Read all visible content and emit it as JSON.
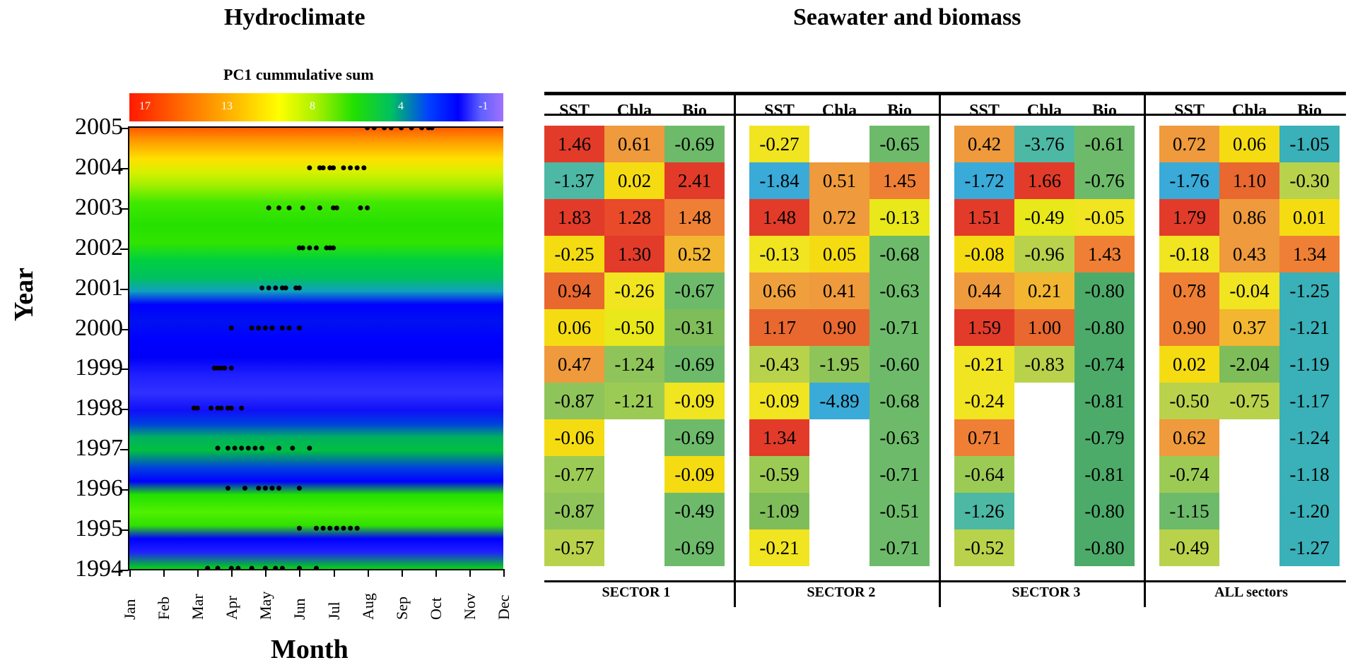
{
  "titles": {
    "left": "Hydroclimate",
    "right": "Seawater and biomass"
  },
  "colorbar": {
    "title": "PC1 cummulative sum",
    "ticks": [
      "17",
      "13",
      "8",
      "4",
      "-1"
    ]
  },
  "chart_data": [
    {
      "type": "heatmap",
      "title": "Hydroclimate",
      "xlabel": "Month",
      "ylabel": "Year",
      "x": [
        "Jan",
        "Feb",
        "Mar",
        "Apr",
        "May",
        "Jun",
        "Jul",
        "Aug",
        "Sep",
        "Oct",
        "Nov",
        "Dec"
      ],
      "y": [
        "2005",
        "2004",
        "2003",
        "2002",
        "2001",
        "2000",
        "1999",
        "1998",
        "1997",
        "1996",
        "1995",
        "1994"
      ],
      "colorbar_label": "PC1 cummulative sum",
      "colorbar_range": [
        -1,
        17
      ],
      "dots": [
        {
          "year": 2005,
          "months": [
            7.0,
            7.2,
            7.5,
            7.7,
            8.0,
            8.3,
            8.6,
            8.8,
            8.9
          ]
        },
        {
          "year": 2004,
          "months": [
            5.3,
            5.6,
            5.7,
            5.9,
            6.0,
            6.3,
            6.5,
            6.7,
            6.9
          ]
        },
        {
          "year": 2003,
          "months": [
            4.1,
            4.4,
            4.7,
            5.1,
            5.6,
            6.0,
            6.1,
            6.8,
            7.0
          ]
        },
        {
          "year": 2002,
          "months": [
            5.0,
            5.1,
            5.3,
            5.5,
            5.8,
            5.9,
            6.0
          ]
        },
        {
          "year": 2001,
          "months": [
            3.9,
            4.1,
            4.3,
            4.5,
            4.6,
            4.9,
            5.0
          ]
        },
        {
          "year": 2000,
          "months": [
            3.0,
            3.6,
            3.8,
            4.0,
            4.2,
            4.5,
            4.7,
            5.0
          ]
        },
        {
          "year": 1999,
          "months": [
            2.5,
            2.6,
            2.7,
            2.8,
            3.0
          ]
        },
        {
          "year": 1998,
          "months": [
            1.9,
            2.0,
            2.4,
            2.6,
            2.7,
            2.9,
            3.0,
            3.3
          ]
        },
        {
          "year": 1997,
          "months": [
            2.6,
            2.9,
            3.1,
            3.3,
            3.5,
            3.7,
            3.9,
            4.4,
            4.8,
            5.3
          ]
        },
        {
          "year": 1996,
          "months": [
            2.9,
            3.4,
            3.8,
            4.0,
            4.2,
            4.4,
            5.0
          ]
        },
        {
          "year": 1995,
          "months": [
            5.0,
            5.5,
            5.7,
            5.9,
            6.1,
            6.3,
            6.5,
            6.7
          ]
        },
        {
          "year": 1994,
          "months": [
            2.3,
            2.6,
            3.0,
            3.2,
            3.6,
            4.0,
            4.3,
            4.5,
            5.0,
            5.5
          ]
        }
      ]
    },
    {
      "type": "table",
      "title": "Seawater and biomass",
      "years": [
        "2005",
        "2004",
        "2003",
        "2002",
        "2001",
        "2000",
        "1999",
        "1998",
        "1997",
        "1996",
        "1995",
        "1994"
      ],
      "columns": [
        "SST",
        "Chla",
        "Bio"
      ],
      "sectors": [
        {
          "name": "SECTOR 1",
          "values": [
            [
              "1.46",
              "0.61",
              "-0.69"
            ],
            [
              "-1.37",
              "0.02",
              "2.41"
            ],
            [
              "1.83",
              "1.28",
              "1.48"
            ],
            [
              "-0.25",
              "1.30",
              "0.52"
            ],
            [
              "0.94",
              "-0.26",
              "-0.67"
            ],
            [
              "0.06",
              "-0.50",
              "-0.31"
            ],
            [
              "0.47",
              "-1.24",
              "-0.69"
            ],
            [
              "-0.87",
              "-1.21",
              "-0.09"
            ],
            [
              "-0.06",
              "",
              "-0.69"
            ],
            [
              "-0.77",
              "",
              "-0.09"
            ],
            [
              "-0.87",
              "",
              "-0.49"
            ],
            [
              "-0.57",
              "",
              "-0.69"
            ]
          ],
          "colors": [
            [
              "#e23b2a",
              "#ef9a3c",
              "#6dbb6a"
            ],
            [
              "#4db8a4",
              "#f5dc12",
              "#e23b2a"
            ],
            [
              "#e23b2a",
              "#e84a2a",
              "#ef7f35"
            ],
            [
              "#f5dc12",
              "#e23b2a",
              "#f2b630"
            ],
            [
              "#e8682f",
              "#f1e420",
              "#6dbb6a"
            ],
            [
              "#f5dc12",
              "#e8e81a",
              "#7fbd5a"
            ],
            [
              "#ef9a3c",
              "#8fc45a",
              "#6dbb6a"
            ],
            [
              "#8fc45a",
              "#9ccb55",
              "#f1e420"
            ],
            [
              "#f5dc12",
              "#ffffff",
              "#6dbb6a"
            ],
            [
              "#9ccb55",
              "#ffffff",
              "#f5dc12"
            ],
            [
              "#8fc45a",
              "#ffffff",
              "#6dbb6a"
            ],
            [
              "#b8d24c",
              "#ffffff",
              "#6dbb6a"
            ]
          ]
        },
        {
          "name": "SECTOR 2",
          "values": [
            [
              "-0.27",
              "",
              "-0.65"
            ],
            [
              "-1.84",
              "0.51",
              "1.45"
            ],
            [
              "1.48",
              "0.72",
              "-0.13"
            ],
            [
              "-0.13",
              "0.05",
              "-0.68"
            ],
            [
              "0.66",
              "0.41",
              "-0.63"
            ],
            [
              "1.17",
              "0.90",
              "-0.71"
            ],
            [
              "-0.43",
              "-1.95",
              "-0.60"
            ],
            [
              "-0.09",
              "-4.89",
              "-0.68"
            ],
            [
              "1.34",
              "",
              "-0.63"
            ],
            [
              "-0.59",
              "",
              "-0.71"
            ],
            [
              "-1.09",
              "",
              "-0.51"
            ],
            [
              "-0.21",
              "",
              "-0.71"
            ]
          ],
          "colors": [
            [
              "#f1e420",
              "#ffffff",
              "#6dbb6a"
            ],
            [
              "#3aaad8",
              "#ef9a3c",
              "#ef7f35"
            ],
            [
              "#e23b2a",
              "#ef9a3c",
              "#e8e81a"
            ],
            [
              "#f1e420",
              "#f5dc12",
              "#6dbb6a"
            ],
            [
              "#efa03c",
              "#ef9a3c",
              "#6dbb6a"
            ],
            [
              "#e8682f",
              "#e8682f",
              "#6dbb6a"
            ],
            [
              "#b8d24c",
              "#8fc45a",
              "#6dbb6a"
            ],
            [
              "#f1e420",
              "#3aaad8",
              "#6dbb6a"
            ],
            [
              "#e23b2a",
              "#ffffff",
              "#6dbb6a"
            ],
            [
              "#9ccb55",
              "#ffffff",
              "#6dbb6a"
            ],
            [
              "#7fbd5a",
              "#ffffff",
              "#6dbb6a"
            ],
            [
              "#f1e420",
              "#ffffff",
              "#6dbb6a"
            ]
          ]
        },
        {
          "name": "SECTOR 3",
          "values": [
            [
              "0.42",
              "-3.76",
              "-0.61"
            ],
            [
              "-1.72",
              "1.66",
              "-0.76"
            ],
            [
              "1.51",
              "-0.49",
              "-0.05"
            ],
            [
              "-0.08",
              "-0.96",
              "1.43"
            ],
            [
              "0.44",
              "0.21",
              "-0.80"
            ],
            [
              "1.59",
              "1.00",
              "-0.80"
            ],
            [
              "-0.21",
              "-0.83",
              "-0.74"
            ],
            [
              "-0.24",
              "",
              "-0.81"
            ],
            [
              "0.71",
              "",
              "-0.79"
            ],
            [
              "-0.64",
              "",
              "-0.81"
            ],
            [
              "-1.26",
              "",
              "-0.80"
            ],
            [
              "-0.52",
              "",
              "-0.80"
            ]
          ],
          "colors": [
            [
              "#ef9a3c",
              "#4db8a4",
              "#6dbb6a"
            ],
            [
              "#3aaad8",
              "#e23b2a",
              "#6dbb6a"
            ],
            [
              "#e23b2a",
              "#e8e81a",
              "#f1e420"
            ],
            [
              "#f5dc12",
              "#b8d24c",
              "#ef7f35"
            ],
            [
              "#ef9a3c",
              "#f2b630",
              "#4dab6a"
            ],
            [
              "#e23b2a",
              "#e8682f",
              "#4dab6a"
            ],
            [
              "#f1e420",
              "#b8d24c",
              "#4dab6a"
            ],
            [
              "#f1e420",
              "#ffffff",
              "#4dab6a"
            ],
            [
              "#ef7f35",
              "#ffffff",
              "#4dab6a"
            ],
            [
              "#9ccb55",
              "#ffffff",
              "#4dab6a"
            ],
            [
              "#4db8a4",
              "#ffffff",
              "#4dab6a"
            ],
            [
              "#b8d24c",
              "#ffffff",
              "#4dab6a"
            ]
          ]
        },
        {
          "name": "ALL sectors",
          "values": [
            [
              "0.72",
              "0.06",
              "-1.05"
            ],
            [
              "-1.76",
              "1.10",
              "-0.30"
            ],
            [
              "1.79",
              "0.86",
              "0.01"
            ],
            [
              "-0.18",
              "0.43",
              "1.34"
            ],
            [
              "0.78",
              "-0.04",
              "-1.25"
            ],
            [
              "0.90",
              "0.37",
              "-1.21"
            ],
            [
              "0.02",
              "-2.04",
              "-1.19"
            ],
            [
              "-0.50",
              "-0.75",
              "-1.17"
            ],
            [
              "0.62",
              "",
              "-1.24"
            ],
            [
              "-0.74",
              "",
              "-1.18"
            ],
            [
              "-1.15",
              "",
              "-1.20"
            ],
            [
              "-0.49",
              "",
              "-1.27"
            ]
          ],
          "colors": [
            [
              "#ef9a3c",
              "#f5dc12",
              "#3ab0b8"
            ],
            [
              "#3aaad8",
              "#e8682f",
              "#b8d24c"
            ],
            [
              "#e23b2a",
              "#ef9a3c",
              "#f5dc12"
            ],
            [
              "#f1e420",
              "#ef9a3c",
              "#ef7f35"
            ],
            [
              "#ef7f35",
              "#f1e420",
              "#3ab0b8"
            ],
            [
              "#ef7f35",
              "#f2b630",
              "#3ab0b8"
            ],
            [
              "#f5dc12",
              "#7fbd5a",
              "#3ab0b8"
            ],
            [
              "#b8d24c",
              "#b8d24c",
              "#3ab0b8"
            ],
            [
              "#ef9a3c",
              "#ffffff",
              "#3ab0b8"
            ],
            [
              "#9ccb55",
              "#ffffff",
              "#3ab0b8"
            ],
            [
              "#6dbb6a",
              "#ffffff",
              "#3ab0b8"
            ],
            [
              "#b8d24c",
              "#ffffff",
              "#3ab0b8"
            ]
          ]
        }
      ]
    }
  ]
}
